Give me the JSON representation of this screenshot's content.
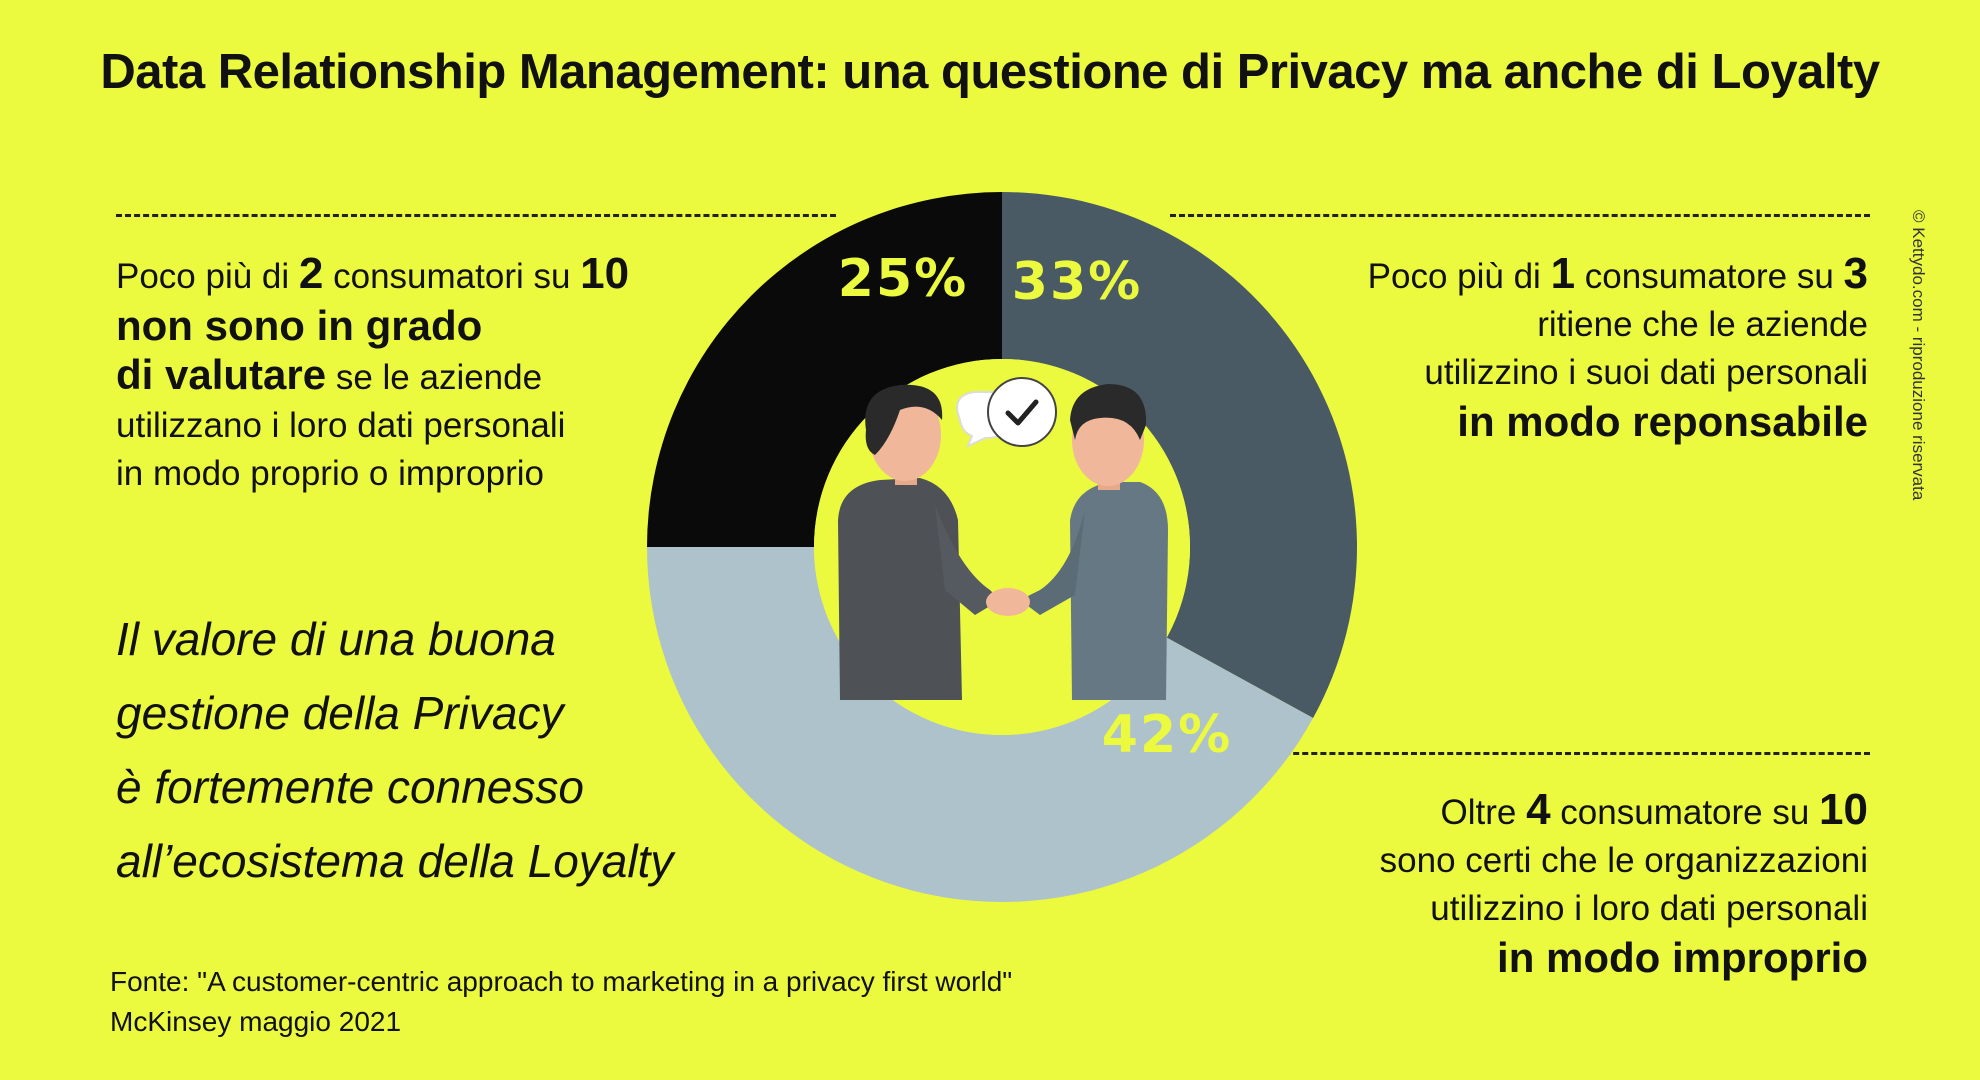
{
  "title": "Data Relationship Management: una questione di Privacy ma anche di Loyalty",
  "chart_data": {
    "type": "pie",
    "variant": "donut",
    "slices": [
      {
        "label": "25%",
        "value": 25,
        "color": "#0a0a0a",
        "text_color": "#ebf93f"
      },
      {
        "label": "33%",
        "value": 33,
        "color": "#4a5a64",
        "text_color": "#ebf93f"
      },
      {
        "label": "42%",
        "value": 42,
        "color": "#adc2cb",
        "text_color": "#ebf93f"
      }
    ]
  },
  "left_block": {
    "l1a": "Poco più di ",
    "l1b": "2",
    "l1c": " consumatori su ",
    "l1d": "10",
    "l2": "non sono in grado",
    "l3a": "di valutare",
    "l3b": " se le aziende",
    "l4": "utilizzano i loro dati personali",
    "l5": "in modo proprio o improprio"
  },
  "right_top": {
    "l1a": "Poco più di ",
    "l1b": "1",
    "l1c": " consumatore su ",
    "l1d": "3",
    "l2": "ritiene che le aziende",
    "l3": "utilizzino i suoi dati personali",
    "l4": "in modo reponsabile"
  },
  "right_bottom": {
    "l1a": "Oltre ",
    "l1b": "4",
    "l1c": " consumatore su ",
    "l1d": "10",
    "l2": "sono certi che le organizzazioni",
    "l3": "utilizzino i loro dati personali",
    "l4": "in modo improprio"
  },
  "quote": [
    "Il valore di una buona",
    "gestione della Privacy",
    "è fortemente connesso",
    "all’ecosistema della Loyalty"
  ],
  "source": {
    "line1": "Fonte:  \"A customer-centric approach to marketing in a privacy first world\"",
    "line2": "McKinsey maggio 2021"
  },
  "copyright": "© Kettydo.com - riproduzione riservata",
  "illustration": {
    "icon": "handshake-illustration",
    "bubble_icon": "checkmark-icon"
  }
}
